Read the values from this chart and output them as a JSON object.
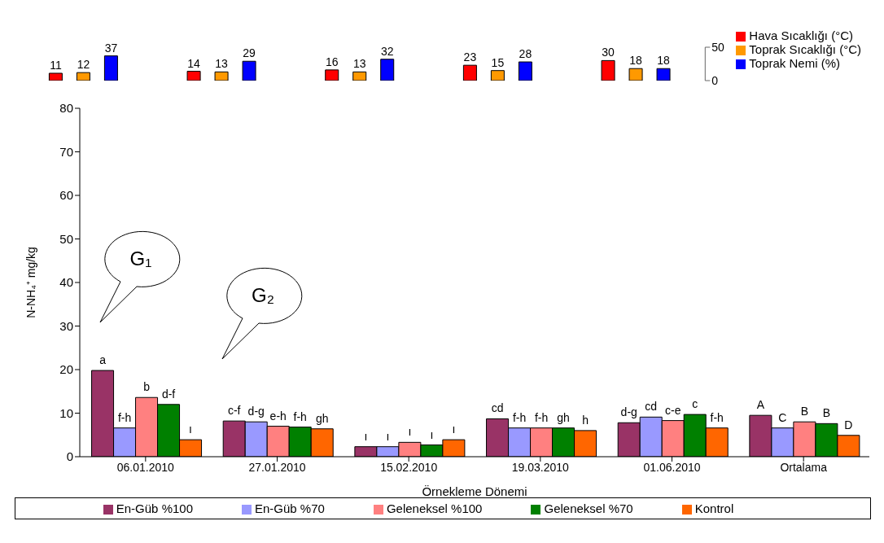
{
  "chart_data": [
    {
      "type": "bar",
      "categories": [
        null,
        null,
        null,
        null,
        null
      ],
      "ylim": [
        0,
        50
      ],
      "yticks": [
        0,
        50
      ],
      "tick_labels": "y",
      "data_labels": true,
      "legend": "right",
      "grid": false,
      "series": [
        {
          "name": "Hava Sıcaklığı (°C)",
          "color": "#ff0000",
          "values": [
            11,
            14,
            16,
            23,
            30
          ]
        },
        {
          "name": "Toprak Sıcaklığı (°C)",
          "color": "#ff9900",
          "values": [
            12,
            13,
            13,
            15,
            18
          ]
        },
        {
          "name": "Toprak Nemi (%)",
          "color": "#0000ff",
          "values": [
            37,
            29,
            32,
            28,
            18
          ]
        }
      ]
    },
    {
      "type": "bar",
      "categories": [
        "06.01.2010",
        "27.01.2010",
        "15.02.2010",
        "19.03.2010",
        "01.06.2010",
        "Ortalama"
      ],
      "xlabel": "Örnekleme Dönemi",
      "ylabel": "N-NH₄⁺ mg/kg",
      "ylim": [
        0,
        80
      ],
      "yticks": [
        0,
        10,
        20,
        30,
        40,
        50,
        60,
        70,
        80
      ],
      "grid": false,
      "legend": "bottom",
      "annotations": [
        "G₁",
        "G₂"
      ],
      "series": [
        {
          "name": "En-Güb %100",
          "color": "#993366",
          "values": [
            19.8,
            8.2,
            2.3,
            8.7,
            7.8,
            9.5
          ],
          "value_labels": [
            "a",
            "c-f",
            "ı",
            "cd",
            "d-g",
            "A"
          ]
        },
        {
          "name": "En-Güb %70",
          "color": "#9999ff",
          "values": [
            6.6,
            8.0,
            2.3,
            6.6,
            9.1,
            6.6
          ],
          "value_labels": [
            "f-h",
            "d-g",
            "ı",
            "f-h",
            "cd",
            "C"
          ]
        },
        {
          "name": "Geleneksel %100",
          "color": "#ff8080",
          "values": [
            13.6,
            7.0,
            3.3,
            6.6,
            8.3,
            8.0
          ],
          "value_labels": [
            "b",
            "e-h",
            "ı",
            "f-h",
            "c-e",
            "B"
          ]
        },
        {
          "name": "Geleneksel %70",
          "color": "#008000",
          "values": [
            12.0,
            6.8,
            2.7,
            6.6,
            9.7,
            7.6
          ],
          "value_labels": [
            "d-f",
            "f-h",
            "ı",
            "gh",
            "c",
            "B"
          ]
        },
        {
          "name": "Kontrol",
          "color": "#ff6600",
          "values": [
            3.9,
            6.4,
            3.9,
            6.0,
            6.6,
            4.9
          ],
          "value_labels": [
            "ı",
            "gh",
            "ı",
            "h",
            "f-h",
            "D"
          ]
        }
      ]
    }
  ]
}
